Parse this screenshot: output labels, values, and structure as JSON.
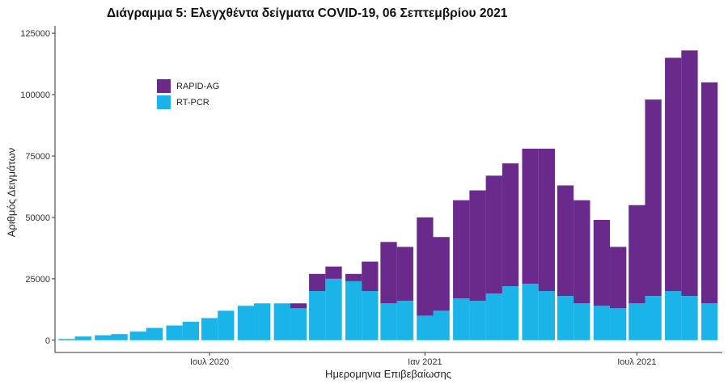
{
  "chart_data": {
    "type": "bar",
    "stacked": true,
    "title": "Διάγραμμα 5: Ελεγχθέντα δείγματα COVID-19, 06 Σεπτεμβρίου 2021",
    "xlabel": "Ημερομηνια Επιβεβαίωσης",
    "ylabel": "Αριθμός Δειγμάτων",
    "ylim": [
      -5000,
      128000
    ],
    "yticks": [
      0,
      25000,
      50000,
      75000,
      100000,
      125000
    ],
    "ytick_labels": [
      "0",
      "25000",
      "50000",
      "75000",
      "100000",
      "125000"
    ],
    "xlim": [
      "2020-02-20",
      "2021-09-12"
    ],
    "xticks": [
      "2020-07-01",
      "2021-01-01",
      "2021-07-01"
    ],
    "xtick_labels": [
      "Ιουλ 2020",
      "Ιαν 2021",
      "Ιουλ 2021"
    ],
    "legend_position": "top-left",
    "colors": {
      "RAPID-AG": "#6a2a8c",
      "RT-PCR": "#1ab4e8"
    },
    "legend": [
      "RAPID-AG",
      "RT-PCR"
    ],
    "x": [
      "2020-03-01",
      "2020-03-15",
      "2020-04-01",
      "2020-04-15",
      "2020-05-01",
      "2020-05-15",
      "2020-06-01",
      "2020-06-15",
      "2020-07-01",
      "2020-07-15",
      "2020-08-01",
      "2020-08-15",
      "2020-09-01",
      "2020-09-15",
      "2020-10-01",
      "2020-10-15",
      "2020-11-01",
      "2020-11-15",
      "2020-12-01",
      "2020-12-15",
      "2021-01-01",
      "2021-01-15",
      "2021-02-01",
      "2021-02-15",
      "2021-03-01",
      "2021-03-15",
      "2021-04-01",
      "2021-04-15",
      "2021-05-01",
      "2021-05-15",
      "2021-06-01",
      "2021-06-15",
      "2021-07-01",
      "2021-07-15",
      "2021-08-01",
      "2021-08-15",
      "2021-09-01"
    ],
    "series": [
      {
        "name": "RT-PCR",
        "values": [
          500,
          1500,
          2000,
          2500,
          3500,
          5000,
          6000,
          7500,
          9000,
          12000,
          14000,
          15000,
          15000,
          13000,
          20000,
          25000,
          24000,
          20000,
          15000,
          16000,
          10000,
          12000,
          17000,
          16000,
          19000,
          22000,
          23000,
          20000,
          18000,
          15000,
          14000,
          13000,
          15000,
          18000,
          20000,
          18000,
          15000
        ]
      },
      {
        "name": "RAPID-AG",
        "values": [
          0,
          0,
          0,
          0,
          0,
          0,
          0,
          0,
          0,
          0,
          0,
          0,
          0,
          2000,
          7000,
          5000,
          3000,
          12000,
          25000,
          22000,
          40000,
          30000,
          40000,
          45000,
          48000,
          50000,
          55000,
          58000,
          45000,
          42000,
          35000,
          25000,
          40000,
          80000,
          95000,
          100000,
          90000
        ]
      }
    ]
  }
}
